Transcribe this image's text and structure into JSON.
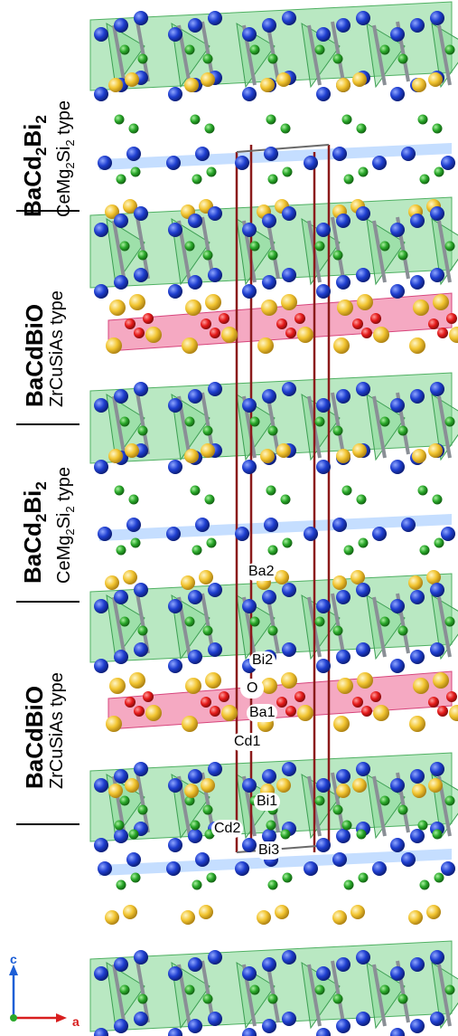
{
  "labels": {
    "l1": {
      "main": "BaCd",
      "main_sub": "2",
      "main2": "Bi",
      "main_sub2": "2",
      "sub": "CeMg",
      "sub_sub": "2",
      "sub2": "Si",
      "sub_sub2": "2",
      "sub3": " type"
    },
    "l2": {
      "main": "BaCdBiO",
      "sub": "ZrCuSiAs type"
    },
    "l3": {
      "main": "BaCd",
      "main_sub": "2",
      "main2": "Bi",
      "main_sub2": "2",
      "sub": "CeMg",
      "sub_sub": "2",
      "sub2": "Si",
      "sub_sub2": "2",
      "sub3": " type"
    },
    "l4": {
      "main": "BaCdBiO",
      "sub": "ZrCuSiAs type"
    }
  },
  "sites": {
    "ba2": "Ba2",
    "bi2": "Bi2",
    "o": "O",
    "ba1": "Ba1",
    "cd1": "Cd1",
    "bi1": "Bi1",
    "cd2": "Cd2",
    "bi3": "Bi3"
  },
  "axes": {
    "c": "c",
    "a": "a"
  },
  "colors": {
    "bi": "#1f3fd0",
    "cd": "#2aa82a",
    "ba": "#f2c531",
    "o": "#e51a1a",
    "cd_poly": "#7fd68f",
    "o_poly": "#ee6f9a",
    "cell": "#8b1a1a",
    "bond": "#8a8f96"
  }
}
